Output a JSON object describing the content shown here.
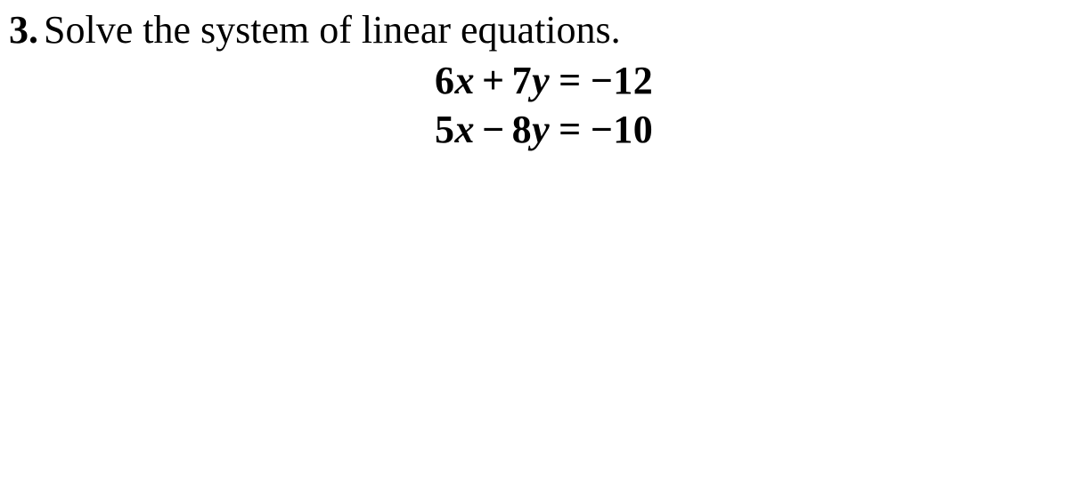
{
  "problem": {
    "number": "3.",
    "prompt": "Solve the system of linear equations.",
    "prompt_fontsize": 44,
    "prompt_color": "#000000",
    "equations_fontweight": "bold",
    "equations_fontsize": 44,
    "equations": [
      {
        "coef1": "6",
        "var1": "x",
        "op": "+",
        "coef2": "7",
        "var2": "y",
        "rhs": "−12"
      },
      {
        "coef1": "5",
        "var1": "x",
        "op": "−",
        "coef2": "8",
        "var2": "y",
        "rhs": "−10"
      }
    ]
  },
  "background_color": "#ffffff"
}
